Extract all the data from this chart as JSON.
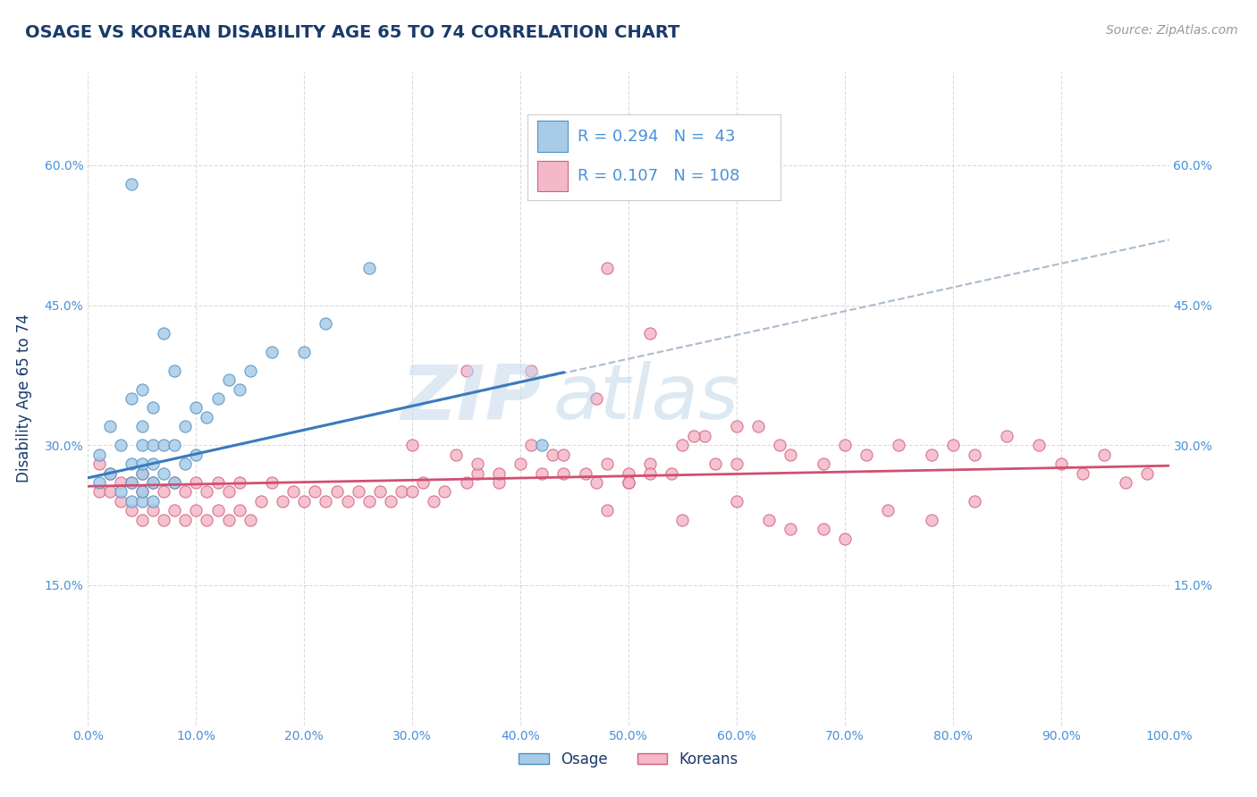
{
  "title": "OSAGE VS KOREAN DISABILITY AGE 65 TO 74 CORRELATION CHART",
  "ylabel": "Disability Age 65 to 74",
  "source_text": "Source: ZipAtlas.com",
  "title_color": "#1a3a6b",
  "axis_label_color": "#1a3a6b",
  "tick_color": "#4a90d9",
  "background_color": "#ffffff",
  "watermark_text": "ZIPatlas",
  "osage_color": "#a8cce8",
  "korean_color": "#f4b8c8",
  "osage_edge": "#5090c0",
  "korean_edge": "#d06080",
  "trend1_color": "#3a7abf",
  "trend2_color": "#d05070",
  "trend_dash_color": "#aabbcc",
  "xlim": [
    0.0,
    1.0
  ],
  "ylim": [
    0.0,
    0.7
  ],
  "xticks": [
    0.0,
    0.1,
    0.2,
    0.3,
    0.4,
    0.5,
    0.6,
    0.7,
    0.8,
    0.9,
    1.0
  ],
  "yticks": [
    0.0,
    0.15,
    0.3,
    0.45,
    0.6
  ],
  "xtick_labels": [
    "0.0%",
    "10.0%",
    "20.0%",
    "30.0%",
    "40.0%",
    "50.0%",
    "60.0%",
    "70.0%",
    "80.0%",
    "90.0%",
    "100.0%"
  ],
  "ytick_labels": [
    "",
    "15.0%",
    "30.0%",
    "45.0%",
    "60.0%"
  ],
  "osage_x": [
    0.01,
    0.01,
    0.02,
    0.02,
    0.03,
    0.03,
    0.04,
    0.04,
    0.04,
    0.04,
    0.04,
    0.05,
    0.05,
    0.05,
    0.05,
    0.05,
    0.05,
    0.05,
    0.06,
    0.06,
    0.06,
    0.06,
    0.06,
    0.07,
    0.07,
    0.07,
    0.08,
    0.08,
    0.08,
    0.09,
    0.09,
    0.1,
    0.1,
    0.11,
    0.12,
    0.13,
    0.14,
    0.15,
    0.17,
    0.2,
    0.22,
    0.26,
    0.42
  ],
  "osage_y": [
    0.26,
    0.29,
    0.27,
    0.32,
    0.25,
    0.3,
    0.24,
    0.26,
    0.28,
    0.35,
    0.58,
    0.24,
    0.25,
    0.27,
    0.28,
    0.3,
    0.32,
    0.36,
    0.24,
    0.26,
    0.28,
    0.3,
    0.34,
    0.27,
    0.3,
    0.42,
    0.26,
    0.3,
    0.38,
    0.28,
    0.32,
    0.29,
    0.34,
    0.33,
    0.35,
    0.37,
    0.36,
    0.38,
    0.4,
    0.4,
    0.43,
    0.49,
    0.3
  ],
  "korean_x": [
    0.01,
    0.01,
    0.02,
    0.02,
    0.03,
    0.03,
    0.04,
    0.04,
    0.05,
    0.05,
    0.05,
    0.06,
    0.06,
    0.07,
    0.07,
    0.08,
    0.08,
    0.09,
    0.09,
    0.1,
    0.1,
    0.11,
    0.11,
    0.12,
    0.12,
    0.13,
    0.13,
    0.14,
    0.14,
    0.15,
    0.16,
    0.17,
    0.18,
    0.19,
    0.2,
    0.21,
    0.22,
    0.23,
    0.24,
    0.25,
    0.26,
    0.27,
    0.28,
    0.29,
    0.3,
    0.31,
    0.32,
    0.33,
    0.35,
    0.36,
    0.38,
    0.4,
    0.42,
    0.44,
    0.46,
    0.47,
    0.48,
    0.5,
    0.52,
    0.55,
    0.57,
    0.6,
    0.62,
    0.64,
    0.65,
    0.68,
    0.7,
    0.72,
    0.75,
    0.78,
    0.8,
    0.82,
    0.85,
    0.88,
    0.9,
    0.92,
    0.94,
    0.96,
    0.98,
    0.41,
    0.43,
    0.3,
    0.34,
    0.36,
    0.48,
    0.52,
    0.56,
    0.6,
    0.63,
    0.65,
    0.5,
    0.55,
    0.48,
    0.52,
    0.6,
    0.68,
    0.7,
    0.74,
    0.78,
    0.82,
    0.35,
    0.38,
    0.41,
    0.44,
    0.47,
    0.5,
    0.54,
    0.58
  ],
  "korean_y": [
    0.25,
    0.28,
    0.25,
    0.27,
    0.24,
    0.26,
    0.23,
    0.26,
    0.22,
    0.25,
    0.27,
    0.23,
    0.26,
    0.22,
    0.25,
    0.23,
    0.26,
    0.22,
    0.25,
    0.23,
    0.26,
    0.22,
    0.25,
    0.23,
    0.26,
    0.22,
    0.25,
    0.23,
    0.26,
    0.22,
    0.24,
    0.26,
    0.24,
    0.25,
    0.24,
    0.25,
    0.24,
    0.25,
    0.24,
    0.25,
    0.24,
    0.25,
    0.24,
    0.25,
    0.25,
    0.26,
    0.24,
    0.25,
    0.26,
    0.27,
    0.26,
    0.28,
    0.27,
    0.27,
    0.27,
    0.35,
    0.28,
    0.27,
    0.28,
    0.3,
    0.31,
    0.28,
    0.32,
    0.3,
    0.29,
    0.28,
    0.3,
    0.29,
    0.3,
    0.29,
    0.3,
    0.29,
    0.31,
    0.3,
    0.28,
    0.27,
    0.29,
    0.26,
    0.27,
    0.3,
    0.29,
    0.3,
    0.29,
    0.28,
    0.49,
    0.42,
    0.31,
    0.32,
    0.22,
    0.21,
    0.26,
    0.22,
    0.23,
    0.27,
    0.24,
    0.21,
    0.2,
    0.23,
    0.22,
    0.24,
    0.38,
    0.27,
    0.38,
    0.29,
    0.26,
    0.26,
    0.27,
    0.28
  ],
  "trend1_x_start": 0.0,
  "trend1_y_start": 0.265,
  "trend1_x_end": 0.44,
  "trend1_y_end": 0.378,
  "trend1_dash_x_end": 1.0,
  "trend1_dash_y_end": 0.52,
  "trend2_x_start": 0.0,
  "trend2_y_start": 0.256,
  "trend2_x_end": 1.0,
  "trend2_y_end": 0.278
}
